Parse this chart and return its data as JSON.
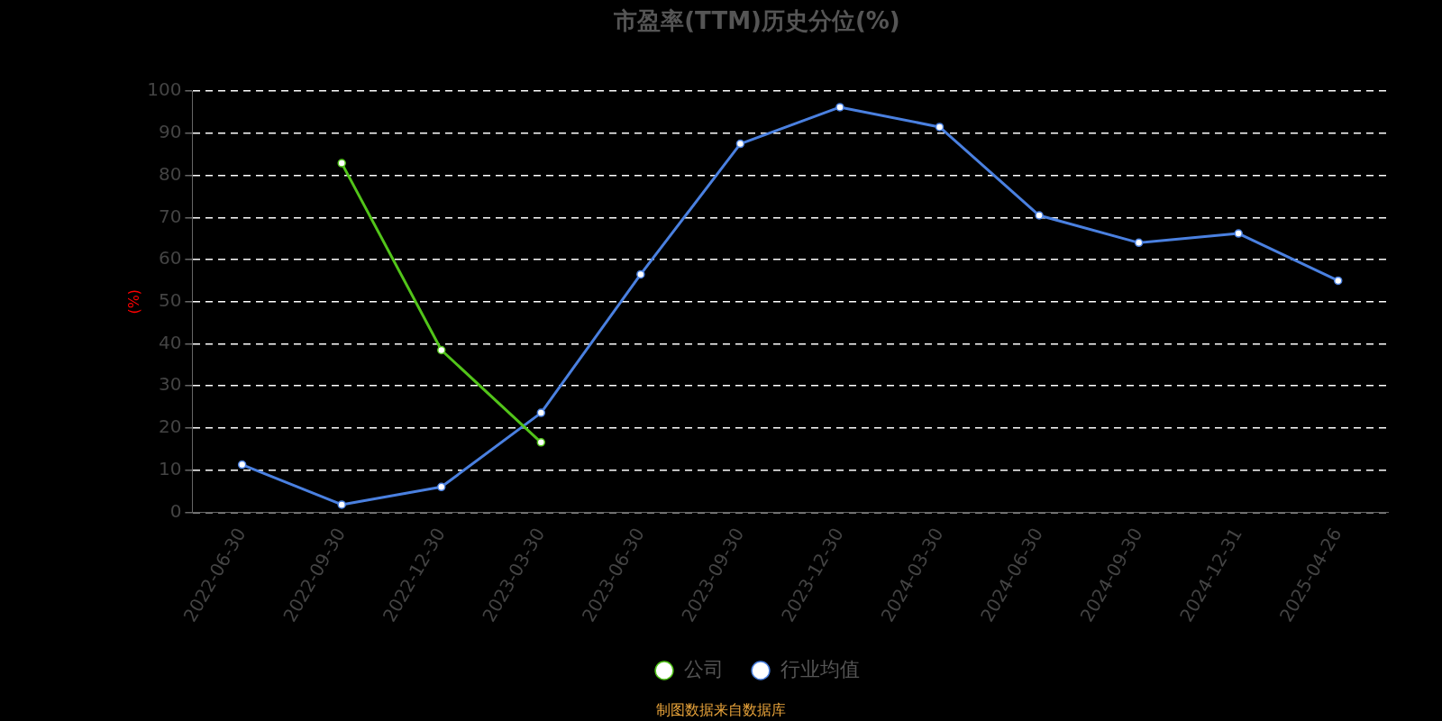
{
  "chart_data": {
    "type": "line",
    "title": "市盈率(TTM)历史分位(%)",
    "ylabel": "(%)",
    "categories": [
      "2022-06-30",
      "2022-09-30",
      "2022-12-30",
      "2023-03-30",
      "2023-06-30",
      "2023-09-30",
      "2023-12-30",
      "2024-03-30",
      "2024-06-30",
      "2024-09-30",
      "2024-12-31",
      "2025-04-26"
    ],
    "series": [
      {
        "name": "公司",
        "color": "#52c41a",
        "values": [
          null,
          82.9,
          38.5,
          16.6,
          null,
          null,
          null,
          null,
          null,
          null,
          null,
          null
        ]
      },
      {
        "name": "行业均值",
        "color": "#4a80e0",
        "values": [
          11.3,
          1.8,
          6,
          23.6,
          56.5,
          87.5,
          96.2,
          91.5,
          70.5,
          64,
          66.2,
          55
        ]
      }
    ],
    "ylim": [
      0,
      100
    ],
    "yticks": [
      0,
      10,
      20,
      30,
      40,
      50,
      60,
      70,
      80,
      90,
      100
    ],
    "grid": "y",
    "legend": "bottom",
    "marker": "circle",
    "line_style": "solid",
    "annotations": [
      "制图数据来自数据库"
    ]
  }
}
